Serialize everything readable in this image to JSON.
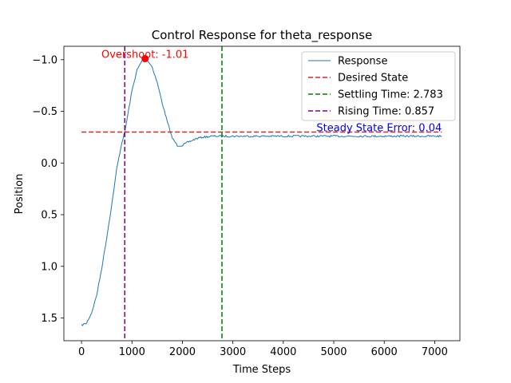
{
  "chart_data": {
    "type": "line",
    "title": "Control Response for theta_response",
    "xlabel": "Time Steps",
    "ylabel": "Position",
    "xlim": [
      -350,
      7500
    ],
    "ylim": [
      1.72,
      -1.13
    ],
    "y_inverted": true,
    "xticks": [
      0,
      1000,
      2000,
      3000,
      4000,
      5000,
      6000,
      7000
    ],
    "yticks": [
      -1.0,
      -0.5,
      0.0,
      0.5,
      1.0,
      1.5
    ],
    "ytick_labels": [
      "−1.0",
      "−0.5",
      "0.0",
      "0.5",
      "1.0",
      "1.5"
    ],
    "grid": false,
    "legend_position": "top-right",
    "series": [
      {
        "name": "Response",
        "style": "solid",
        "color": "#1f77b4",
        "x": [
          0,
          100,
          200,
          300,
          400,
          500,
          600,
          700,
          800,
          857,
          900,
          1000,
          1100,
          1200,
          1260,
          1300,
          1400,
          1500,
          1600,
          1700,
          1800,
          1900,
          2000,
          2100,
          2200,
          2300,
          2400,
          2600,
          2783,
          3000,
          3500,
          4000,
          4500,
          5000,
          5500,
          6000,
          6500,
          7000,
          7140
        ],
        "y": [
          1.57,
          1.55,
          1.45,
          1.28,
          1.02,
          0.72,
          0.4,
          0.05,
          -0.2,
          -0.3,
          -0.42,
          -0.7,
          -0.9,
          -0.99,
          -1.01,
          -1.0,
          -0.93,
          -0.78,
          -0.58,
          -0.4,
          -0.24,
          -0.17,
          -0.17,
          -0.2,
          -0.22,
          -0.24,
          -0.25,
          -0.26,
          -0.26,
          -0.26,
          -0.26,
          -0.26,
          -0.26,
          -0.26,
          -0.26,
          -0.26,
          -0.26,
          -0.26,
          -0.26
        ]
      },
      {
        "name": "Desired State",
        "style": "dashed",
        "color": "#d62728",
        "x": [
          0,
          7140
        ],
        "y": [
          -0.3,
          -0.3
        ]
      }
    ],
    "vlines": [
      {
        "name": "Settling Time: 2.783",
        "x": 2783,
        "color": "#008000",
        "style": "dashed"
      },
      {
        "name": "Rising Time: 0.857",
        "x": 857,
        "color": "#800080",
        "style": "dashed"
      }
    ],
    "annotations": [
      {
        "text": "Overshoot: -1.01",
        "x": 1260,
        "y": -1.01,
        "color": "#ff0000",
        "marker": true
      },
      {
        "text": "Steady State Error: 0.04",
        "x": 7140,
        "y": -0.3,
        "color": "#0000ff"
      }
    ]
  }
}
